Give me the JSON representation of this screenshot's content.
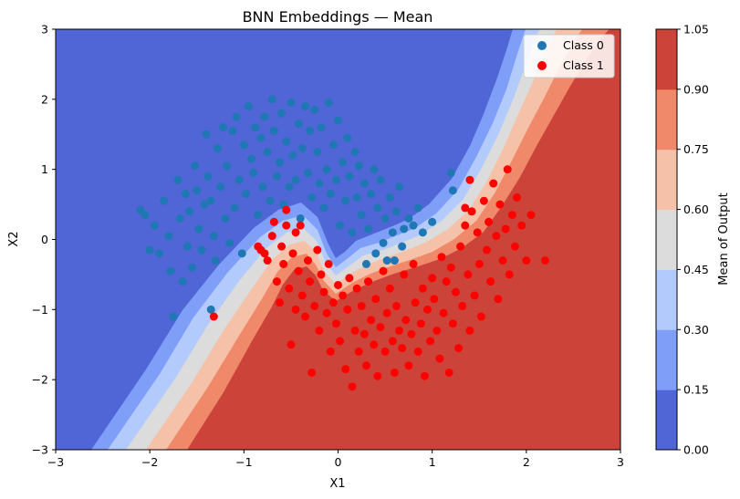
{
  "chart_data": {
    "type": "contour_scatter",
    "title": "BNN Embeddings — Mean",
    "xlabel": "X1",
    "ylabel": "X2",
    "xlim": [
      -3,
      3
    ],
    "ylim": [
      -3,
      3
    ],
    "x_ticks": [
      "−3",
      "−2",
      "−1",
      "0",
      "1",
      "2",
      "3"
    ],
    "y_ticks": [
      "−3",
      "−2",
      "−1",
      "0",
      "1",
      "2",
      "3"
    ],
    "x_tick_values": [
      -3,
      -2,
      -1,
      0,
      1,
      2,
      3
    ],
    "y_tick_values": [
      -3,
      -2,
      -1,
      0,
      1,
      2,
      3
    ],
    "legend": {
      "location": "top-right",
      "entries": [
        {
          "label": "Class 0",
          "color": "#1f77b4"
        },
        {
          "label": "Class 1",
          "color": "#ff0000"
        }
      ]
    },
    "colorbar": {
      "label": "Mean of Output",
      "levels": [
        0.0,
        0.15,
        0.3,
        0.45,
        0.6,
        0.75,
        0.9,
        1.05
      ],
      "tick_labels": [
        "0.00",
        "0.15",
        "0.30",
        "0.45",
        "0.60",
        "0.75",
        "0.90",
        "1.05"
      ],
      "colors": [
        "#5066d6",
        "#7f9ef8",
        "#b3cbfc",
        "#dcdcdc",
        "#f5c1a8",
        "#f0896a",
        "#cc4439"
      ]
    },
    "class0_points": [
      [
        -2.1,
        0.42
      ],
      [
        -2.05,
        0.35
      ],
      [
        -2.0,
        -0.15
      ],
      [
        -1.95,
        0.2
      ],
      [
        -1.9,
        -0.2
      ],
      [
        -1.85,
        0.55
      ],
      [
        -1.8,
        0.05
      ],
      [
        -1.78,
        -0.45
      ],
      [
        -1.75,
        -1.1
      ],
      [
        -1.7,
        0.85
      ],
      [
        -1.68,
        0.3
      ],
      [
        -1.65,
        -0.6
      ],
      [
        -1.62,
        0.65
      ],
      [
        -1.6,
        -0.1
      ],
      [
        -1.58,
        0.4
      ],
      [
        -1.55,
        -0.4
      ],
      [
        -1.52,
        1.05
      ],
      [
        -1.5,
        0.7
      ],
      [
        -1.48,
        0.15
      ],
      [
        -1.45,
        -0.15
      ],
      [
        -1.42,
        0.5
      ],
      [
        -1.4,
        1.5
      ],
      [
        -1.38,
        0.9
      ],
      [
        -1.35,
        0.55
      ],
      [
        -1.32,
        0.05
      ],
      [
        -1.3,
        -0.3
      ],
      [
        -1.28,
        1.3
      ],
      [
        -1.25,
        0.75
      ],
      [
        -1.22,
        1.6
      ],
      [
        -1.2,
        0.3
      ],
      [
        -1.18,
        1.05
      ],
      [
        -1.15,
        -0.05
      ],
      [
        -1.12,
        1.55
      ],
      [
        -1.1,
        0.45
      ],
      [
        -1.08,
        1.75
      ],
      [
        -1.05,
        0.85
      ],
      [
        -1.02,
        -0.2
      ],
      [
        -1.0,
        1.35
      ],
      [
        -0.98,
        0.65
      ],
      [
        -0.95,
        1.9
      ],
      [
        -0.92,
        1.15
      ],
      [
        -0.9,
        0.95
      ],
      [
        -0.88,
        1.6
      ],
      [
        -0.85,
        0.35
      ],
      [
        -0.82,
        1.45
      ],
      [
        -0.8,
        0.75
      ],
      [
        -0.78,
        1.75
      ],
      [
        -0.75,
        1.25
      ],
      [
        -0.72,
        0.55
      ],
      [
        -0.7,
        2.0
      ],
      [
        -0.68,
        1.55
      ],
      [
        -0.65,
        0.9
      ],
      [
        -0.62,
        1.1
      ],
      [
        -0.6,
        1.8
      ],
      [
        -0.58,
        0.5
      ],
      [
        -0.55,
        1.4
      ],
      [
        -0.52,
        0.75
      ],
      [
        -0.5,
        1.95
      ],
      [
        -0.48,
        1.2
      ],
      [
        -0.45,
        0.85
      ],
      [
        -0.42,
        1.65
      ],
      [
        -0.4,
        0.3
      ],
      [
        -0.38,
        1.3
      ],
      [
        -0.35,
        1.9
      ],
      [
        -0.32,
        0.95
      ],
      [
        -0.3,
        1.55
      ],
      [
        -0.28,
        0.6
      ],
      [
        -0.25,
        1.85
      ],
      [
        -0.22,
        1.25
      ],
      [
        -0.2,
        0.8
      ],
      [
        -0.18,
        1.6
      ],
      [
        -0.15,
        0.45
      ],
      [
        -0.12,
        1.0
      ],
      [
        -0.1,
        1.95
      ],
      [
        -0.08,
        0.65
      ],
      [
        -0.05,
        1.35
      ],
      [
        -0.02,
        0.85
      ],
      [
        0.0,
        1.7
      ],
      [
        0.02,
        0.2
      ],
      [
        0.05,
        1.1
      ],
      [
        0.08,
        0.55
      ],
      [
        0.1,
        1.45
      ],
      [
        0.12,
        0.9
      ],
      [
        0.15,
        0.1
      ],
      [
        0.18,
        1.25
      ],
      [
        0.2,
        0.6
      ],
      [
        0.22,
        1.05
      ],
      [
        0.25,
        0.35
      ],
      [
        0.28,
        0.8
      ],
      [
        0.3,
        -0.35
      ],
      [
        0.32,
        0.15
      ],
      [
        0.35,
        0.65
      ],
      [
        0.38,
        1.0
      ],
      [
        0.4,
        -0.2
      ],
      [
        0.42,
        0.45
      ],
      [
        0.45,
        0.85
      ],
      [
        0.48,
        -0.05
      ],
      [
        0.5,
        0.3
      ],
      [
        0.52,
        -0.3
      ],
      [
        0.55,
        0.6
      ],
      [
        0.58,
        0.1
      ],
      [
        0.6,
        -0.3
      ],
      [
        0.62,
        0.4
      ],
      [
        0.65,
        0.75
      ],
      [
        0.68,
        -0.1
      ],
      [
        0.7,
        0.15
      ],
      [
        0.75,
        0.3
      ],
      [
        0.8,
        0.2
      ],
      [
        0.85,
        0.45
      ],
      [
        0.9,
        0.1
      ],
      [
        1.0,
        0.25
      ],
      [
        1.2,
        0.95
      ],
      [
        1.22,
        0.7
      ],
      [
        -1.35,
        -1.0
      ]
    ],
    "class1_points": [
      [
        -1.32,
        -1.1
      ],
      [
        -0.85,
        -0.1
      ],
      [
        -0.82,
        -0.15
      ],
      [
        -0.78,
        -0.2
      ],
      [
        -0.75,
        -0.3
      ],
      [
        -0.7,
        0.05
      ],
      [
        -0.68,
        0.25
      ],
      [
        -0.65,
        -0.6
      ],
      [
        -0.62,
        -0.9
      ],
      [
        -0.6,
        -0.1
      ],
      [
        -0.58,
        -0.35
      ],
      [
        -0.55,
        0.2
      ],
      [
        -0.55,
        0.42
      ],
      [
        -0.52,
        -0.7
      ],
      [
        -0.5,
        -1.5
      ],
      [
        -0.48,
        -0.2
      ],
      [
        -0.45,
        -1.0
      ],
      [
        -0.45,
        0.1
      ],
      [
        -0.42,
        -0.45
      ],
      [
        -0.4,
        0.2
      ],
      [
        -0.38,
        -0.8
      ],
      [
        -0.35,
        -1.1
      ],
      [
        -0.32,
        -0.3
      ],
      [
        -0.3,
        -0.6
      ],
      [
        -0.28,
        -1.9
      ],
      [
        -0.25,
        -0.95
      ],
      [
        -0.22,
        -0.15
      ],
      [
        -0.2,
        -1.3
      ],
      [
        -0.18,
        -0.5
      ],
      [
        -0.15,
        -0.75
      ],
      [
        -0.12,
        -1.05
      ],
      [
        -0.1,
        -0.35
      ],
      [
        -0.08,
        -1.6
      ],
      [
        -0.05,
        -0.9
      ],
      [
        -0.02,
        -1.2
      ],
      [
        0.0,
        -0.65
      ],
      [
        0.02,
        -1.45
      ],
      [
        0.05,
        -0.8
      ],
      [
        0.08,
        -1.85
      ],
      [
        0.1,
        -1.0
      ],
      [
        0.12,
        -0.55
      ],
      [
        0.15,
        -2.1
      ],
      [
        0.18,
        -1.3
      ],
      [
        0.2,
        -0.7
      ],
      [
        0.22,
        -1.6
      ],
      [
        0.25,
        -0.95
      ],
      [
        0.28,
        -1.35
      ],
      [
        0.3,
        -1.8
      ],
      [
        0.32,
        -0.6
      ],
      [
        0.35,
        -1.15
      ],
      [
        0.38,
        -1.5
      ],
      [
        0.4,
        -0.85
      ],
      [
        0.42,
        -1.95
      ],
      [
        0.45,
        -1.25
      ],
      [
        0.48,
        -0.45
      ],
      [
        0.5,
        -1.6
      ],
      [
        0.52,
        -1.05
      ],
      [
        0.55,
        -0.7
      ],
      [
        0.58,
        -1.45
      ],
      [
        0.6,
        -1.9
      ],
      [
        0.62,
        -0.95
      ],
      [
        0.65,
        -1.3
      ],
      [
        0.68,
        -1.55
      ],
      [
        0.7,
        -0.5
      ],
      [
        0.72,
        -1.15
      ],
      [
        0.75,
        -1.8
      ],
      [
        0.78,
        -1.35
      ],
      [
        0.8,
        -0.35
      ],
      [
        0.82,
        -0.9
      ],
      [
        0.85,
        -1.6
      ],
      [
        0.88,
        -1.2
      ],
      [
        0.9,
        -0.7
      ],
      [
        0.92,
        -1.95
      ],
      [
        0.95,
        -1.0
      ],
      [
        0.98,
        -1.45
      ],
      [
        1.0,
        -0.55
      ],
      [
        1.02,
        -0.85
      ],
      [
        1.05,
        -1.3
      ],
      [
        1.08,
        -1.7
      ],
      [
        1.1,
        -0.25
      ],
      [
        1.12,
        -1.05
      ],
      [
        1.15,
        -0.6
      ],
      [
        1.18,
        -1.9
      ],
      [
        1.2,
        -0.4
      ],
      [
        1.22,
        -1.2
      ],
      [
        1.25,
        -0.75
      ],
      [
        1.28,
        -1.55
      ],
      [
        1.3,
        -0.1
      ],
      [
        1.32,
        -0.95
      ],
      [
        1.35,
        0.2
      ],
      [
        1.38,
        -0.5
      ],
      [
        1.4,
        -1.3
      ],
      [
        1.42,
        0.4
      ],
      [
        1.45,
        -0.8
      ],
      [
        1.48,
        0.1
      ],
      [
        1.5,
        -0.35
      ],
      [
        1.52,
        -1.1
      ],
      [
        1.55,
        0.55
      ],
      [
        1.58,
        -0.15
      ],
      [
        1.6,
        0.25
      ],
      [
        1.62,
        -0.6
      ],
      [
        1.65,
        0.8
      ],
      [
        1.68,
        0.05
      ],
      [
        1.7,
        -0.85
      ],
      [
        1.72,
        0.5
      ],
      [
        1.75,
        -0.3
      ],
      [
        1.78,
        0.15
      ],
      [
        1.8,
        1.0
      ],
      [
        1.82,
        -0.5
      ],
      [
        1.85,
        0.35
      ],
      [
        1.88,
        -0.1
      ],
      [
        1.9,
        0.6
      ],
      [
        1.95,
        0.2
      ],
      [
        2.0,
        -0.3
      ],
      [
        2.05,
        0.35
      ],
      [
        2.2,
        -0.3
      ],
      [
        1.4,
        0.85
      ],
      [
        1.35,
        0.45
      ]
    ]
  }
}
